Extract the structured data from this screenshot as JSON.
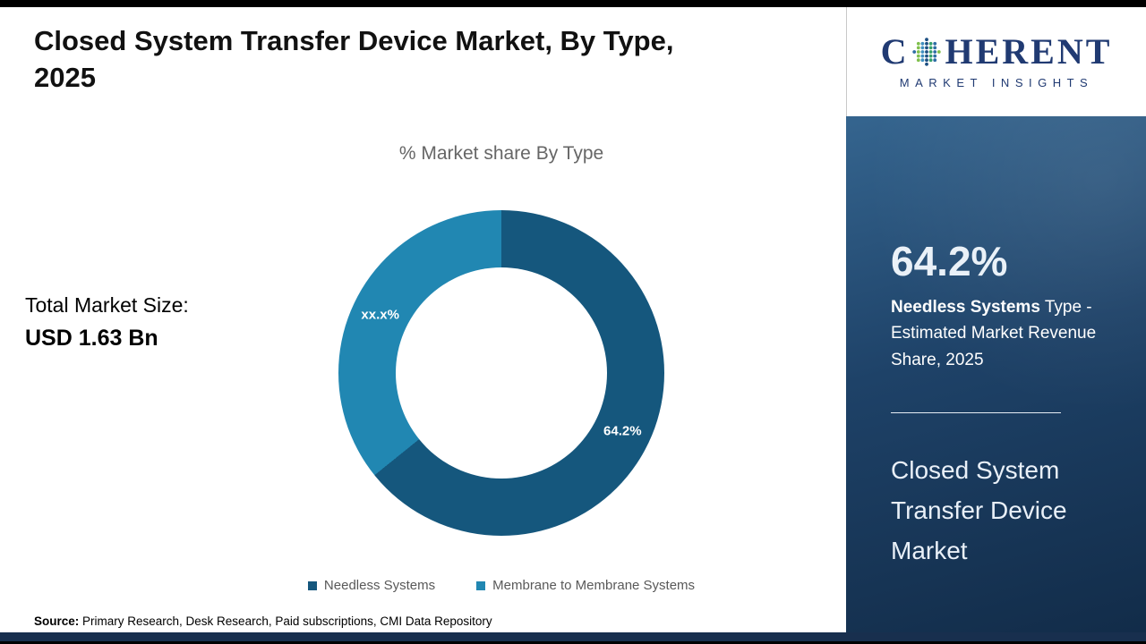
{
  "slide": {
    "title": "Closed System Transfer Device Market, By Type,\n2025",
    "source_label": "Source:",
    "source_text": " Primary Research, Desk Research, Paid subscriptions, CMI Data Repository"
  },
  "logo": {
    "prefix": "C",
    "suffix": "HERENT",
    "tagline": "MARKET INSIGHTS"
  },
  "totals": {
    "label": "Total Market Size:",
    "value": "USD 1.63 Bn"
  },
  "chart_data": {
    "type": "pie",
    "donut": true,
    "title": "% Market share By Type",
    "categories": [
      "Needless Systems",
      "Membrane to Membrane Systems"
    ],
    "values": [
      64.2,
      35.8
    ],
    "slice_labels": [
      "64.2%",
      "xx.x%"
    ],
    "colors": [
      "#15577d",
      "#2187b2"
    ],
    "legend_position": "bottom"
  },
  "sidebar": {
    "stat_value": "64.2%",
    "stat_bold": "Needless Systems",
    "stat_rest": " Type - Estimated Market Revenue Share, 2025",
    "market_name": "Closed System Transfer Device Market"
  }
}
